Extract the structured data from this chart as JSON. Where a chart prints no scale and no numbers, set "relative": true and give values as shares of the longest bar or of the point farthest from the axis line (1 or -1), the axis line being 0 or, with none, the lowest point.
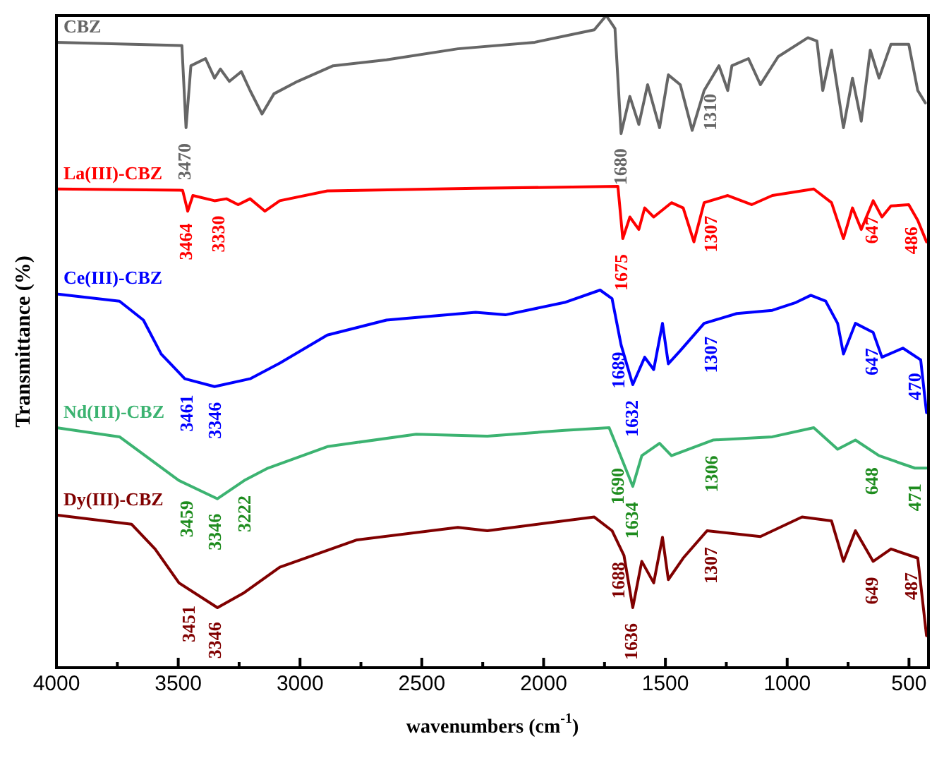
{
  "chart_data": {
    "type": "line",
    "xlabel": "wavenumbers (cm$^{-1}$)",
    "ylabel": "Transmittance (%)",
    "relative": true,
    "xlim": [
      4000,
      420
    ],
    "xticks": [
      4000,
      {
        "value": 3750,
        "label": null
      },
      3500,
      {
        "value": 3250,
        "label": null
      },
      3000,
      {
        "value": 2750,
        "label": null
      },
      2500,
      {
        "value": 2250,
        "label": null
      },
      2000,
      {
        "value": 1750,
        "label": null
      },
      1500,
      {
        "value": 1250,
        "label": null
      },
      1000,
      {
        "value": 750,
        "label": null
      },
      500
    ],
    "grid": false,
    "legend": false,
    "marker": "none",
    "line_style": "solid",
    "series": [
      {
        "name": "CBZ",
        "color": "#666666",
        "x": [
          4000,
          3485,
          3468,
          3448,
          3388,
          3351,
          3327,
          3290,
          3241,
          3205,
          3156,
          3107,
          3010,
          2864,
          2645,
          2352,
          2036,
          1792,
          1743,
          1707,
          1682,
          1646,
          1609,
          1573,
          1524,
          1488,
          1439,
          1390,
          1341,
          1280,
          1244,
          1227,
          1159,
          1110,
          1037,
          915,
          878,
          854,
          818,
          769,
          732,
          696,
          659,
          623,
          574,
          501,
          464,
          433
        ],
        "values": [
          0.959,
          0.954,
          0.828,
          0.923,
          0.934,
          0.904,
          0.918,
          0.899,
          0.914,
          0.885,
          0.849,
          0.88,
          0.899,
          0.923,
          0.932,
          0.949,
          0.959,
          0.978,
          1,
          0.98,
          0.819,
          0.876,
          0.833,
          0.894,
          0.828,
          0.909,
          0.894,
          0.824,
          0.885,
          0.923,
          0.885,
          0.923,
          0.934,
          0.894,
          0.937,
          0.966,
          0.961,
          0.885,
          0.947,
          0.828,
          0.904,
          0.838,
          0.947,
          0.904,
          0.956,
          0.956,
          0.885,
          0.866
        ]
      },
      {
        "name": "La(III)-CBZ",
        "color": "#ff0000",
        "x": [
          4000,
          3482,
          3461,
          3440,
          3351,
          3302,
          3254,
          3205,
          3144,
          3083,
          2888,
          2279,
          1695,
          1675,
          1646,
          1609,
          1585,
          1548,
          1475,
          1427,
          1383,
          1341,
          1244,
          1146,
          1061,
          891,
          818,
          769,
          732,
          696,
          647,
          611,
          574,
          501,
          464,
          428
        ],
        "values": [
          0.734,
          0.732,
          0.7,
          0.724,
          0.716,
          0.719,
          0.71,
          0.719,
          0.7,
          0.716,
          0.731,
          0.735,
          0.738,
          0.658,
          0.691,
          0.672,
          0.705,
          0.691,
          0.713,
          0.705,
          0.653,
          0.713,
          0.724,
          0.71,
          0.724,
          0.734,
          0.713,
          0.658,
          0.705,
          0.672,
          0.716,
          0.691,
          0.708,
          0.71,
          0.686,
          0.653
        ]
      },
      {
        "name": "Ce(III)-CBZ",
        "color": "#0000ff",
        "x": [
          4000,
          3741,
          3643,
          3570,
          3473,
          3351,
          3205,
          3083,
          2888,
          2645,
          2279,
          2157,
          1914,
          1768,
          1719,
          1682,
          1634,
          1585,
          1548,
          1512,
          1488,
          1439,
          1341,
          1207,
          1061,
          964,
          903,
          842,
          793,
          769,
          720,
          647,
          611,
          525,
          452,
          428
        ],
        "values": [
          0.573,
          0.562,
          0.533,
          0.481,
          0.443,
          0.431,
          0.443,
          0.467,
          0.51,
          0.533,
          0.545,
          0.541,
          0.56,
          0.579,
          0.566,
          0.495,
          0.434,
          0.476,
          0.457,
          0.528,
          0.466,
          0.486,
          0.528,
          0.543,
          0.548,
          0.56,
          0.571,
          0.562,
          0.528,
          0.481,
          0.528,
          0.514,
          0.476,
          0.49,
          0.472,
          0.391
        ]
      },
      {
        "name": "Nd(III)-CBZ",
        "color": "#3cb371",
        "x": [
          4000,
          3741,
          3497,
          3339,
          3229,
          3132,
          2888,
          2523,
          2231,
          1914,
          1731,
          1695,
          1634,
          1597,
          1524,
          1475,
          1305,
          1061,
          891,
          793,
          720,
          623,
          476,
          428
        ],
        "values": [
          0.368,
          0.354,
          0.287,
          0.259,
          0.287,
          0.306,
          0.339,
          0.358,
          0.355,
          0.364,
          0.368,
          0.335,
          0.278,
          0.325,
          0.344,
          0.325,
          0.349,
          0.354,
          0.368,
          0.335,
          0.349,
          0.325,
          0.306,
          0.306
        ]
      },
      {
        "name": "Dy(III)-CBZ",
        "color": "#800000",
        "x": [
          4000,
          3692,
          3595,
          3497,
          3339,
          3229,
          3083,
          2766,
          2352,
          2231,
          1792,
          1719,
          1670,
          1634,
          1597,
          1548,
          1512,
          1488,
          1427,
          1329,
          1110,
          939,
          818,
          769,
          720,
          647,
          574,
          464,
          428
        ],
        "values": [
          0.234,
          0.22,
          0.182,
          0.13,
          0.092,
          0.115,
          0.154,
          0.196,
          0.215,
          0.21,
          0.231,
          0.21,
          0.172,
          0.092,
          0.163,
          0.13,
          0.2,
          0.135,
          0.168,
          0.21,
          0.201,
          0.231,
          0.225,
          0.163,
          0.21,
          0.163,
          0.182,
          0.168,
          0.049
        ]
      }
    ],
    "annotations": [
      {
        "text": "3470",
        "x": 3470,
        "y": 0.828
      },
      {
        "text": "1680",
        "x": 1680,
        "y": 0.82
      },
      {
        "text": "1310",
        "x": 1310,
        "y": 0.904
      },
      {
        "text": "3464",
        "x": 3464,
        "y": 0.705
      },
      {
        "text": "3330",
        "x": 3330,
        "y": 0.717
      },
      {
        "text": "1675",
        "x": 1675,
        "y": 0.658
      },
      {
        "text": "1307",
        "x": 1307,
        "y": 0.717
      },
      {
        "text": "647",
        "x": 647,
        "y": 0.716
      },
      {
        "text": "486",
        "x": 486,
        "y": 0.7
      },
      {
        "text": "3461",
        "x": 3461,
        "y": 0.442
      },
      {
        "text": "3346",
        "x": 3346,
        "y": 0.431
      },
      {
        "text": "1689",
        "x": 1689,
        "y": 0.508
      },
      {
        "text": "1632",
        "x": 1632,
        "y": 0.434
      },
      {
        "text": "1307",
        "x": 1307,
        "y": 0.532
      },
      {
        "text": "647",
        "x": 647,
        "y": 0.514
      },
      {
        "text": "470",
        "x": 470,
        "y": 0.476
      },
      {
        "text": "3459",
        "x": 3459,
        "y": 0.28
      },
      {
        "text": "3346",
        "x": 3346,
        "y": 0.26
      },
      {
        "text": "3222",
        "x": 3222,
        "y": 0.288
      },
      {
        "text": "1690",
        "x": 1690,
        "y": 0.33
      },
      {
        "text": "1634",
        "x": 1634,
        "y": 0.278
      },
      {
        "text": "1306",
        "x": 1306,
        "y": 0.349
      },
      {
        "text": "648",
        "x": 648,
        "y": 0.331
      },
      {
        "text": "471",
        "x": 471,
        "y": 0.306
      },
      {
        "text": "3451",
        "x": 3451,
        "y": 0.119
      },
      {
        "text": "3346",
        "x": 3346,
        "y": 0.094
      },
      {
        "text": "1688",
        "x": 1688,
        "y": 0.186
      },
      {
        "text": "1636",
        "x": 1636,
        "y": 0.092
      },
      {
        "text": "1307",
        "x": 1307,
        "y": 0.209
      },
      {
        "text": "649",
        "x": 649,
        "y": 0.163
      },
      {
        "text": "487",
        "x": 487,
        "y": 0.17
      }
    ]
  }
}
